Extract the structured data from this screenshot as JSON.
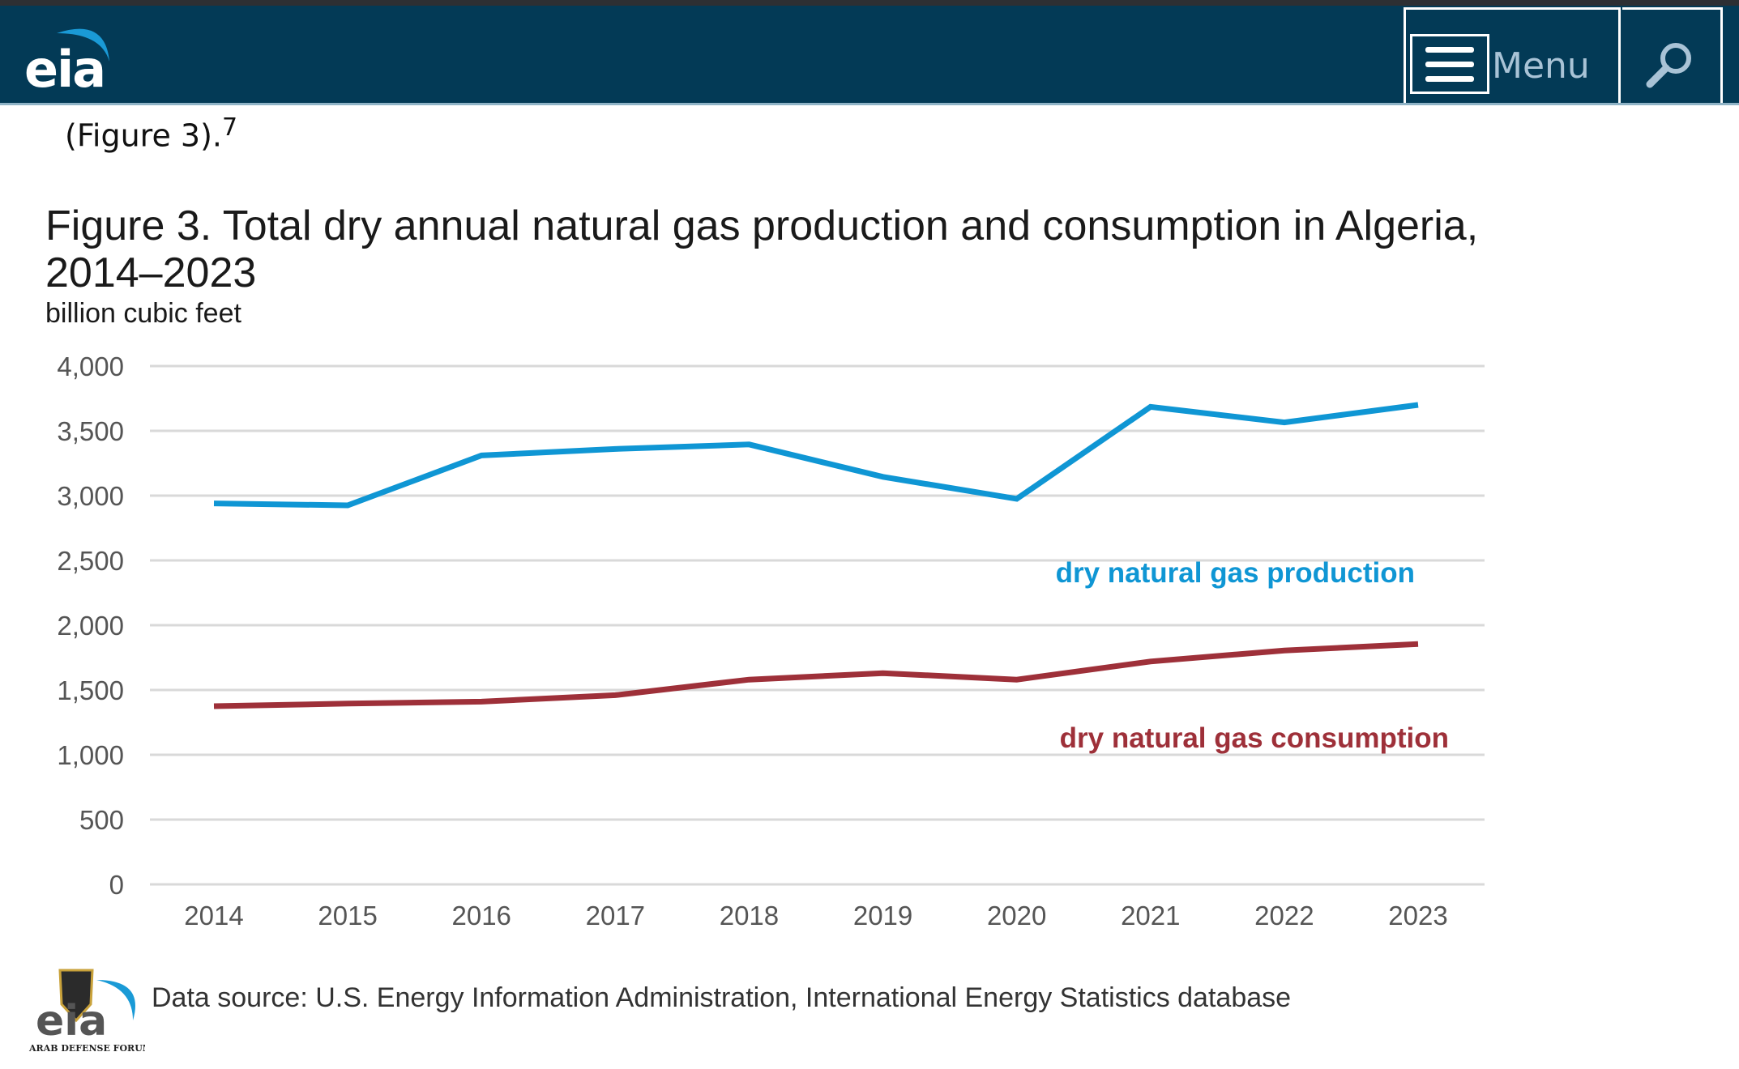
{
  "header": {
    "logo": "eia",
    "menu_label": "Menu",
    "menu_icon": "hamburger-icon",
    "search_icon": "search-icon",
    "bg_color": "#033a56"
  },
  "intro": {
    "text": "(Figure 3).",
    "footnote": "7"
  },
  "chart_data": {
    "type": "line",
    "title": "Figure 3. Total dry annual natural gas production and consumption in Algeria, 2014–2023",
    "ylabel": "billion cubic feet",
    "xlabel": "",
    "categories": [
      "2014",
      "2015",
      "2016",
      "2017",
      "2018",
      "2019",
      "2020",
      "2021",
      "2022",
      "2023"
    ],
    "ylim": [
      0,
      4000
    ],
    "yticks": [
      0,
      500,
      1000,
      1500,
      2000,
      2500,
      3000,
      3500,
      4000
    ],
    "ytick_labels": [
      "0",
      "500",
      "1,000",
      "1,500",
      "2,000",
      "2,500",
      "3,000",
      "3,500",
      "4,000"
    ],
    "grid": true,
    "series": [
      {
        "name": "dry natural gas production",
        "color": "#0f96d4",
        "values": [
          2940,
          2925,
          3310,
          3360,
          3395,
          3145,
          2975,
          3685,
          3565,
          3700
        ]
      },
      {
        "name": "dry natural gas consumption",
        "color": "#9e3039",
        "values": [
          1375,
          1395,
          1410,
          1460,
          1580,
          1630,
          1580,
          1720,
          1805,
          1855
        ]
      }
    ]
  },
  "footer": {
    "source": "Data source: U.S. Energy Information Administration, International Energy Statistics database",
    "logo": "eia",
    "watermark": "ARAB DEFENSE FORUM"
  }
}
